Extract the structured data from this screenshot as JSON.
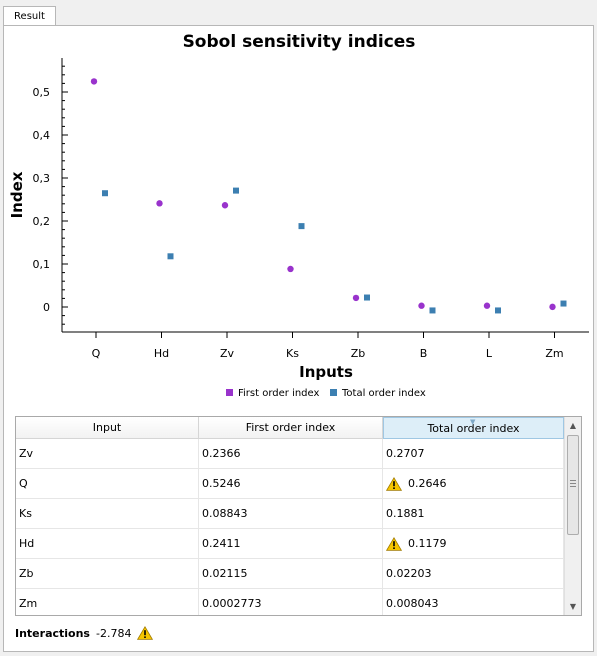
{
  "tab": {
    "label": "Result"
  },
  "chart_data": {
    "type": "scatter",
    "title": "Sobol sensitivity indices",
    "xlabel": "Inputs",
    "ylabel": "Index",
    "categories": [
      "Q",
      "Hd",
      "Zv",
      "Ks",
      "Zb",
      "B",
      "L",
      "Zm"
    ],
    "yticks": [
      "0",
      "0,1",
      "0,2",
      "0,3",
      "0,4",
      "0,5"
    ],
    "ylim": [
      -0.05,
      0.57
    ],
    "grid": false,
    "legend_position": "bottom",
    "series": [
      {
        "name": "First order index",
        "color": "#9933cc",
        "marker": "circle",
        "values": [
          0.5246,
          0.2411,
          0.2366,
          0.08843,
          0.02115,
          0.003,
          0.003,
          0.0002773
        ]
      },
      {
        "name": "Total order index",
        "color": "#3c7fb1",
        "marker": "square",
        "values": [
          0.2646,
          0.1179,
          0.2707,
          0.1881,
          0.02203,
          -0.008,
          -0.008,
          0.008043
        ]
      }
    ]
  },
  "table": {
    "headers": [
      "Input",
      "First order index",
      "Total order index"
    ],
    "rows": [
      {
        "input": "Zv",
        "first": "0.2366",
        "total": "0.2707",
        "warn": false
      },
      {
        "input": "Q",
        "first": "0.5246",
        "total": "0.2646",
        "warn": true
      },
      {
        "input": "Ks",
        "first": "0.08843",
        "total": "0.1881",
        "warn": false
      },
      {
        "input": "Hd",
        "first": "0.2411",
        "total": "0.1179",
        "warn": true
      },
      {
        "input": "Zb",
        "first": "0.02115",
        "total": "0.02203",
        "warn": false
      },
      {
        "input": "Zm",
        "first": "0.0002773",
        "total": "0.008043",
        "warn": false
      }
    ]
  },
  "interactions": {
    "label": "Interactions",
    "value": "-2.784"
  },
  "icons": {
    "warning": "warning-triangle-icon",
    "scroll_up": "scroll-up-arrow-icon",
    "scroll_down": "scroll-down-arrow-icon",
    "sort": "sort-indicator-icon"
  },
  "colors": {
    "warning_fill": "#f5c400",
    "accent_header": "#ddeef8"
  }
}
